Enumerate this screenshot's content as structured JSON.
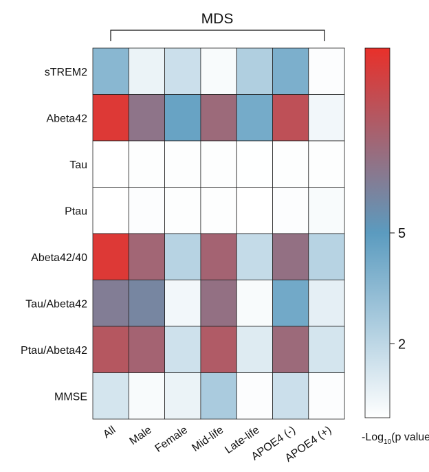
{
  "chart_data": {
    "type": "heatmap",
    "title": "MDS",
    "columns": [
      "All",
      "Male",
      "Female",
      "Mid-life",
      "Late-life",
      "APOE4 (-)",
      "APOE4 (+)"
    ],
    "rows": [
      "sTREM2",
      "Abeta42",
      "Tau",
      "Ptau",
      "Abeta42/40",
      "Tau/Abeta42",
      "Ptau/Abeta42",
      "MMSE"
    ],
    "values": [
      [
        3.6,
        0.6,
        1.6,
        0.2,
        2.4,
        4.0,
        0.1
      ],
      [
        9.6,
        6.8,
        4.6,
        7.3,
        4.2,
        8.5,
        0.4
      ],
      [
        0.0,
        0.05,
        0.05,
        0.05,
        0.02,
        0.05,
        0.05
      ],
      [
        0.0,
        0.1,
        0.05,
        0.05,
        0.0,
        0.1,
        0.2
      ],
      [
        9.6,
        7.5,
        2.2,
        7.6,
        1.8,
        7.0,
        2.2
      ],
      [
        6.4,
        6.0,
        0.4,
        7.0,
        0.2,
        4.3,
        0.8
      ],
      [
        8.2,
        7.6,
        1.5,
        8.0,
        1.0,
        7.3,
        1.3
      ],
      [
        1.3,
        0.2,
        0.6,
        2.6,
        0.1,
        1.6,
        0.1
      ]
    ],
    "colorbar": {
      "label_main": "-Log",
      "label_sub": "10",
      "label_rest": "(p value)",
      "ticks": [
        2,
        5
      ],
      "range": [
        0,
        10
      ],
      "colors": [
        "#ffffff",
        "#5b9bbf",
        "#e8302a"
      ],
      "color_stops": [
        0,
        0.5,
        1
      ]
    }
  }
}
